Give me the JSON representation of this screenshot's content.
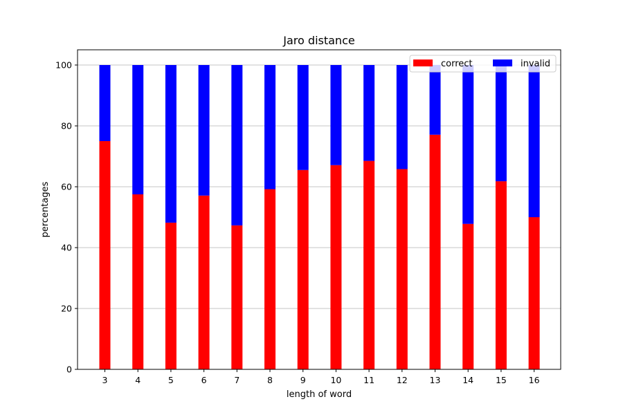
{
  "chart_data": {
    "type": "bar",
    "stacked": true,
    "title": "Jaro distance",
    "xlabel": "length of word",
    "ylabel": "percentages",
    "categories": [
      "3",
      "4",
      "5",
      "6",
      "7",
      "8",
      "9",
      "10",
      "11",
      "12",
      "13",
      "14",
      "15",
      "16"
    ],
    "series": [
      {
        "name": "correct",
        "color": "#ff0000",
        "values": [
          75,
          57.5,
          48.2,
          57.1,
          47.3,
          59.2,
          65.5,
          67.1,
          68.5,
          65.8,
          77.1,
          47.8,
          61.8,
          50.0
        ]
      },
      {
        "name": "invalid",
        "color": "#0000ff",
        "values": [
          25,
          42.5,
          51.8,
          42.9,
          52.7,
          40.8,
          34.5,
          32.9,
          31.5,
          34.2,
          22.9,
          52.2,
          38.2,
          50.0
        ]
      }
    ],
    "ylim": [
      0,
      105
    ],
    "yticks": [
      "0",
      "20",
      "40",
      "60",
      "80",
      "100"
    ],
    "grid": "horizontal",
    "legend_position": "top-right"
  }
}
